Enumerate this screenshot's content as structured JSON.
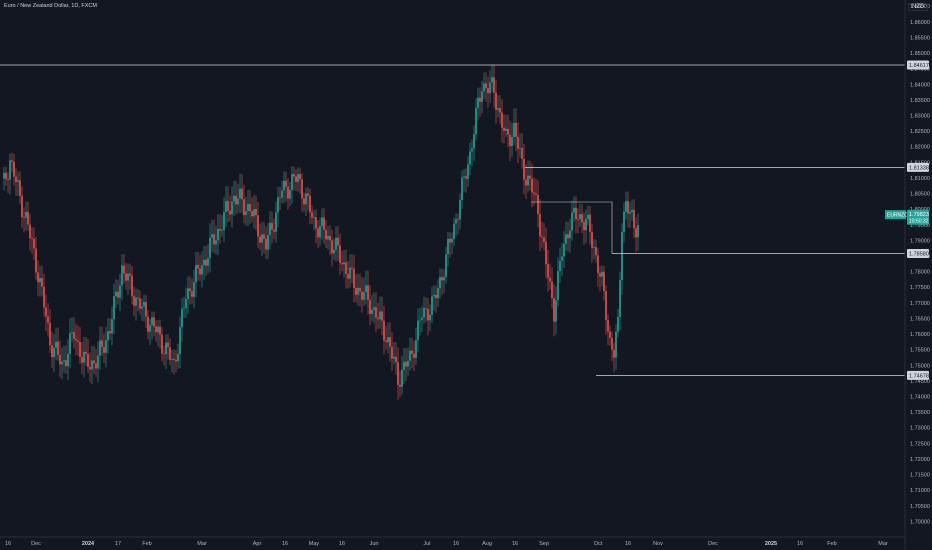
{
  "header": {
    "symbol_title": "Euro / New Zealand Dollar, 1D, FXCM",
    "currency": "NZD"
  },
  "colors": {
    "bg": "#131722",
    "up": "#26a69a",
    "down": "#ef5350",
    "level": "#d1d4dc"
  },
  "chart_data": {
    "type": "candlestick",
    "ylim": [
      1.695,
      1.867
    ],
    "y_ticks": [
      "1.86500",
      "1.86000",
      "1.85500",
      "1.85000",
      "1.84500",
      "1.84000",
      "1.83500",
      "1.83000",
      "1.82500",
      "1.82000",
      "1.81500",
      "1.81000",
      "1.80500",
      "1.80000",
      "1.79500",
      "1.79000",
      "1.78500",
      "1.78000",
      "1.77500",
      "1.77000",
      "1.76500",
      "1.76000",
      "1.75500",
      "1.75000",
      "1.74500",
      "1.74000",
      "1.73500",
      "1.73000",
      "1.72500",
      "1.72000",
      "1.71500",
      "1.71000",
      "1.70500",
      "1.70000"
    ],
    "x_ticks": [
      {
        "label": "16",
        "major": false
      },
      {
        "label": "Dec",
        "major": false
      },
      {
        "label": "2024",
        "major": true
      },
      {
        "label": "17",
        "major": false
      },
      {
        "label": "Feb",
        "major": false
      },
      {
        "label": "Mar",
        "major": false
      },
      {
        "label": "Apr",
        "major": false
      },
      {
        "label": "16",
        "major": false
      },
      {
        "label": "May",
        "major": false
      },
      {
        "label": "16",
        "major": false
      },
      {
        "label": "Jun",
        "major": false
      },
      {
        "label": "Jul",
        "major": false
      },
      {
        "label": "16",
        "major": false
      },
      {
        "label": "Aug",
        "major": false
      },
      {
        "label": "16",
        "major": false
      },
      {
        "label": "Sep",
        "major": false
      },
      {
        "label": "Oct",
        "major": false
      },
      {
        "label": "16",
        "major": false
      },
      {
        "label": "Nov",
        "major": false
      },
      {
        "label": "Dec",
        "major": false
      },
      {
        "label": "2025",
        "major": true
      },
      {
        "label": "16",
        "major": false
      },
      {
        "label": "Feb",
        "major": false
      },
      {
        "label": "Mar",
        "major": false
      }
    ],
    "levels": [
      {
        "label": "1.84617",
        "value": 1.84617
      },
      {
        "label": "1.81338",
        "value": 1.81338
      },
      {
        "label": "1.78580",
        "value": 1.7858
      },
      {
        "label": "1.74678",
        "value": 1.74678
      }
    ],
    "last_price": {
      "symbol": "EURNZD",
      "value": "1.79823",
      "countdown": "10:50:32"
    },
    "series_keypoints": [
      [
        1.808,
        1
      ],
      [
        1.816,
        4
      ],
      [
        1.806,
        8
      ],
      [
        1.797,
        12
      ],
      [
        1.78,
        18
      ],
      [
        1.758,
        24
      ],
      [
        1.75,
        30
      ],
      [
        1.76,
        36
      ],
      [
        1.75,
        42
      ],
      [
        1.752,
        48
      ],
      [
        1.762,
        54
      ],
      [
        1.781,
        60
      ],
      [
        1.77,
        68
      ],
      [
        1.76,
        78
      ],
      [
        1.75,
        86
      ],
      [
        1.772,
        92
      ],
      [
        1.782,
        100
      ],
      [
        1.793,
        108
      ],
      [
        1.804,
        116
      ],
      [
        1.8,
        124
      ],
      [
        1.788,
        132
      ],
      [
        1.806,
        140
      ],
      [
        1.81,
        148
      ],
      [
        1.796,
        156
      ],
      [
        1.792,
        162
      ],
      [
        1.786,
        168
      ],
      [
        1.776,
        176
      ],
      [
        1.77,
        184
      ],
      [
        1.76,
        192
      ],
      [
        1.746,
        198
      ],
      [
        1.752,
        204
      ],
      [
        1.766,
        210
      ],
      [
        1.77,
        216
      ],
      [
        1.784,
        222
      ],
      [
        1.8,
        228
      ],
      [
        1.818,
        234
      ],
      [
        1.84,
        240
      ],
      [
        1.838,
        246
      ],
      [
        1.822,
        252
      ],
      [
        1.826,
        256
      ],
      [
        1.814,
        260
      ],
      [
        1.808,
        264
      ],
      [
        1.8,
        268
      ],
      [
        1.782,
        272
      ],
      [
        1.768,
        276
      ],
      [
        1.786,
        280
      ],
      [
        1.796,
        284
      ],
      [
        1.798,
        288
      ],
      [
        1.796,
        292
      ],
      [
        1.788,
        296
      ],
      [
        1.776,
        300
      ],
      [
        1.758,
        304
      ],
      [
        1.754,
        306
      ],
      [
        1.762,
        308
      ],
      [
        1.796,
        310
      ],
      [
        1.802,
        312
      ],
      [
        1.794,
        316
      ],
      [
        1.796,
        318
      ]
    ]
  }
}
